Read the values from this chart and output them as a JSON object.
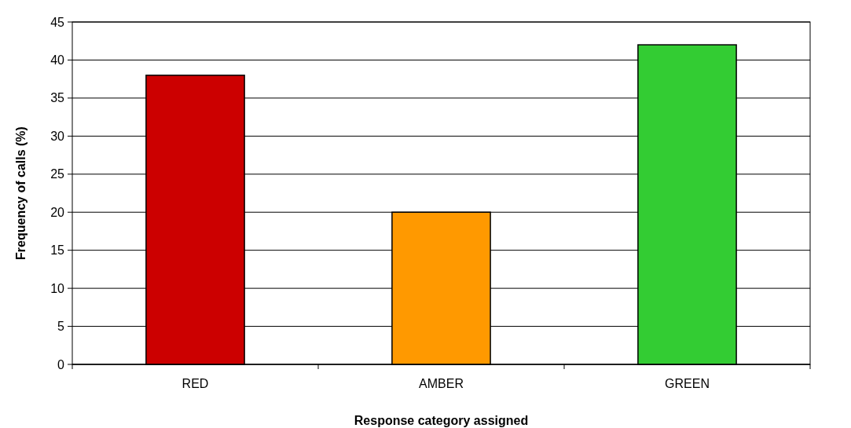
{
  "chart_data": {
    "type": "bar",
    "xlabel": "Response category assigned",
    "ylabel": "Frequency of calls (%)",
    "categories": [
      "RED",
      "AMBER",
      "GREEN"
    ],
    "values": [
      38,
      20,
      42
    ],
    "colors": [
      "#cc0000",
      "#ff9900",
      "#33cc33"
    ],
    "ylim": [
      0,
      45
    ],
    "yticks": [
      0,
      5,
      10,
      15,
      20,
      25,
      30,
      35,
      40,
      45
    ],
    "grid": "y"
  }
}
